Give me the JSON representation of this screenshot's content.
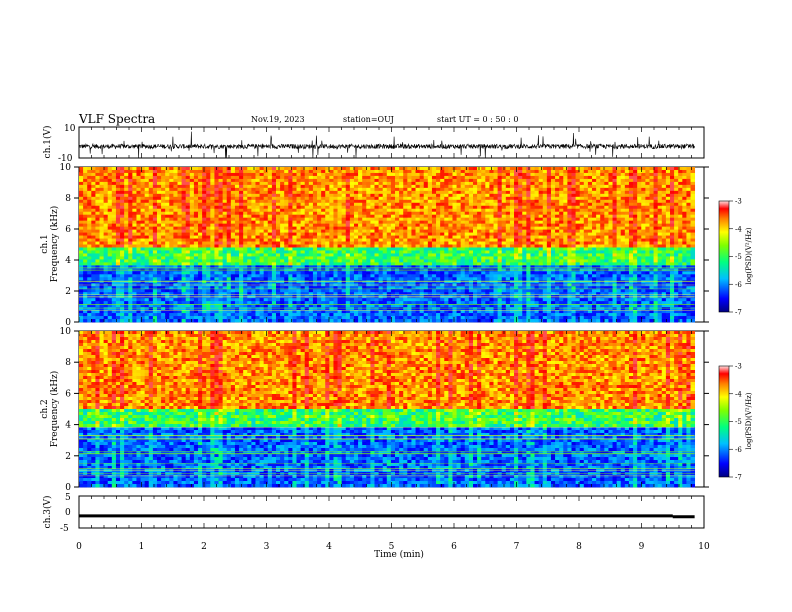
{
  "header": {
    "title": "VLF Spectra",
    "date": "Nov.19, 2023",
    "station": "station=OUJ",
    "start": "start  UT =   0 : 50 : 0"
  },
  "chart_data": [
    {
      "type": "line",
      "panel": "ch1-waveform",
      "ylabel": "ch.1(V)",
      "ylim": [
        -10,
        10
      ],
      "y_ticks": [
        "10",
        "-10"
      ],
      "xlim": [
        0,
        10
      ],
      "series_description_values": {
        "baseline": -2.5,
        "typical_amplitude": 1.5,
        "max_spike": 9
      }
    },
    {
      "type": "heatmap",
      "panel": "ch1-spectrogram",
      "ylabel_line1": "ch.1",
      "ylabel_line2": "Frequency (kHz)",
      "ylim": [
        0,
        10
      ],
      "y_ticks": [
        "0",
        "2",
        "4",
        "6",
        "8",
        "10"
      ],
      "xlim": [
        0,
        9.85
      ],
      "colorbar_label": "log(PSD)(V²/Hz)",
      "colorbar_range": [
        -7,
        -3
      ],
      "colorbar_ticks": [
        "-3",
        "-4",
        "-5",
        "-6",
        "-7"
      ],
      "boundary_khz": 4.8
    },
    {
      "type": "heatmap",
      "panel": "ch2-spectrogram",
      "ylabel_line1": "ch.2",
      "ylabel_line2": "Frequency (kHz)",
      "ylim": [
        0,
        10
      ],
      "y_ticks": [
        "0",
        "2",
        "4",
        "6",
        "8",
        "10"
      ],
      "xlim": [
        0,
        9.85
      ],
      "colorbar_label": "log(PSD)(V²/Hz)",
      "colorbar_range": [
        -7,
        -3
      ],
      "colorbar_ticks": [
        "-3",
        "-4",
        "-5",
        "-6",
        "-7"
      ],
      "boundary_khz": 5.0
    },
    {
      "type": "line",
      "panel": "ch3-waveform",
      "ylabel": "ch.3(V)",
      "ylim": [
        -5,
        5
      ],
      "y_ticks": [
        "5",
        "0",
        "-5"
      ],
      "xlim": [
        0,
        10
      ],
      "series_description_values": {
        "level_main": -1.2,
        "level_end": -1.5,
        "step_time_min": 9.5
      }
    }
  ],
  "x_axis": {
    "label": "Time (min)",
    "ticks": [
      "0",
      "1",
      "2",
      "3",
      "4",
      "5",
      "6",
      "7",
      "8",
      "9",
      "10"
    ],
    "range": [
      0,
      10
    ]
  }
}
